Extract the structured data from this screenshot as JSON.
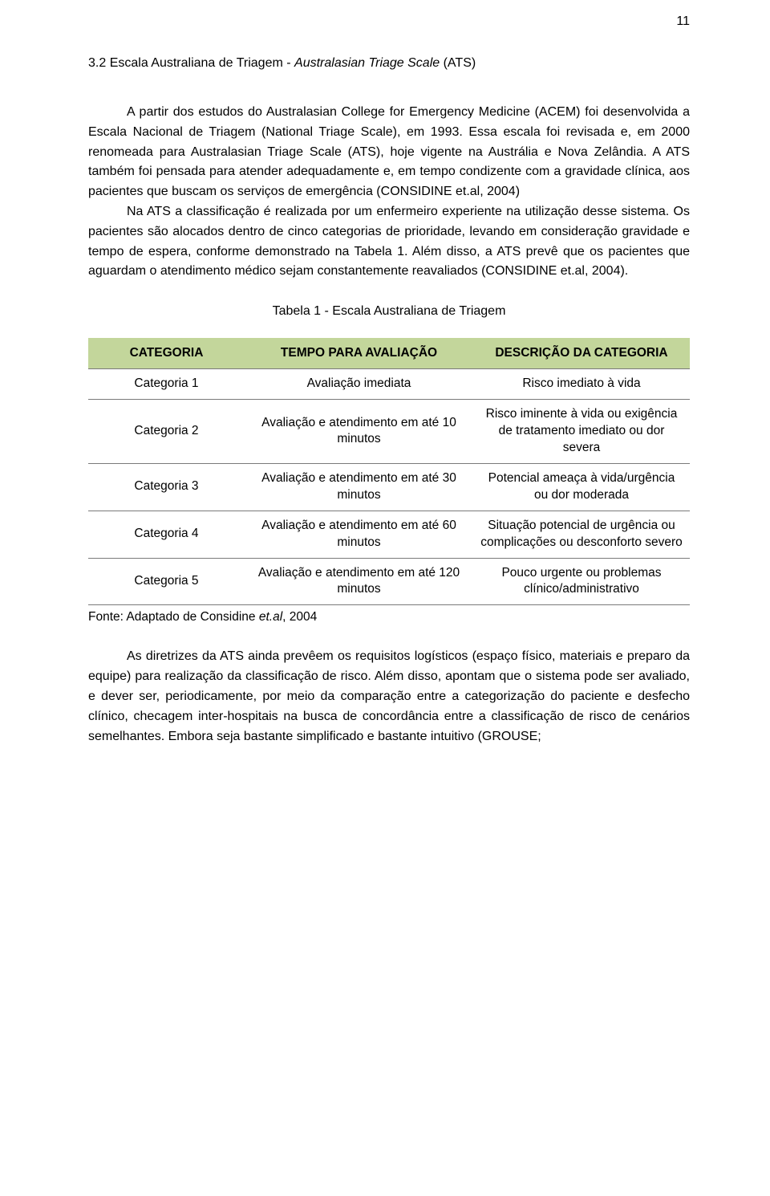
{
  "page_number": "11",
  "heading": {
    "prefix": "3.2 Escala Australiana de Triagem - ",
    "italic": "Australasian Triage Scale",
    "suffix": " (ATS)"
  },
  "paragraphs": {
    "p1": "A partir dos estudos do Australasian College for Emergency Medicine (ACEM) foi desenvolvida a Escala Nacional de Triagem (National Triage Scale), em 1993. Essa escala foi revisada e, em 2000 renomeada para Australasian Triage Scale (ATS), hoje vigente na Austrália e Nova Zelândia. A ATS também foi pensada para atender adequadamente e, em tempo condizente com a gravidade clínica, aos pacientes que buscam os serviços de emergência (CONSIDINE et.al, 2004)",
    "p2": "Na ATS a classificação é realizada por um enfermeiro experiente na utilização desse sistema. Os pacientes são alocados dentro de cinco categorias de prioridade, levando em consideração gravidade e tempo de espera, conforme demonstrado na Tabela 1.  Além disso, a ATS prevê que os pacientes que aguardam o atendimento médico sejam constantemente reavaliados (CONSIDINE et.al, 2004).",
    "p3": "As diretrizes da ATS ainda prevêem os requisitos logísticos (espaço físico, materiais e preparo da equipe) para realização da classificação de risco. Além disso, apontam que o sistema pode ser avaliado, e dever ser, periodicamente, por meio da comparação entre a categorização do paciente e desfecho clínico, checagem inter-hospitais na busca de concordância entre a classificação de risco de cenários semelhantes.  Embora seja bastante simplificado e bastante intuitivo (GROUSE;"
  },
  "table": {
    "caption": "Tabela 1 - Escala Australiana de Triagem",
    "header_bg": "#c3d69b",
    "header_border": "#7a7a7a",
    "columns": [
      "CATEGORIA",
      "TEMPO PARA AVALIAÇÃO",
      "DESCRIÇÃO DA CATEGORIA"
    ],
    "rows": [
      [
        "Categoria 1",
        "Avaliação imediata",
        "Risco imediato à vida"
      ],
      [
        "Categoria 2",
        "Avaliação e atendimento em até 10 minutos",
        "Risco iminente à vida ou exigência de tratamento imediato ou dor severa"
      ],
      [
        "Categoria 3",
        "Avaliação e atendimento em até 30 minutos",
        "Potencial ameaça à vida/urgência ou dor moderada"
      ],
      [
        "Categoria 4",
        "Avaliação e atendimento em até 60 minutos",
        "Situação potencial de urgência ou complicações ou desconforto severo"
      ],
      [
        "Categoria 5",
        "Avaliação e atendimento em até 120 minutos",
        "Pouco urgente ou problemas clínico/administrativo"
      ]
    ],
    "source_prefix": "Fonte: Adaptado de Considine ",
    "source_italic": "et.al",
    "source_suffix": ", 2004",
    "col_widths": [
      "26%",
      "38%",
      "36%"
    ]
  }
}
